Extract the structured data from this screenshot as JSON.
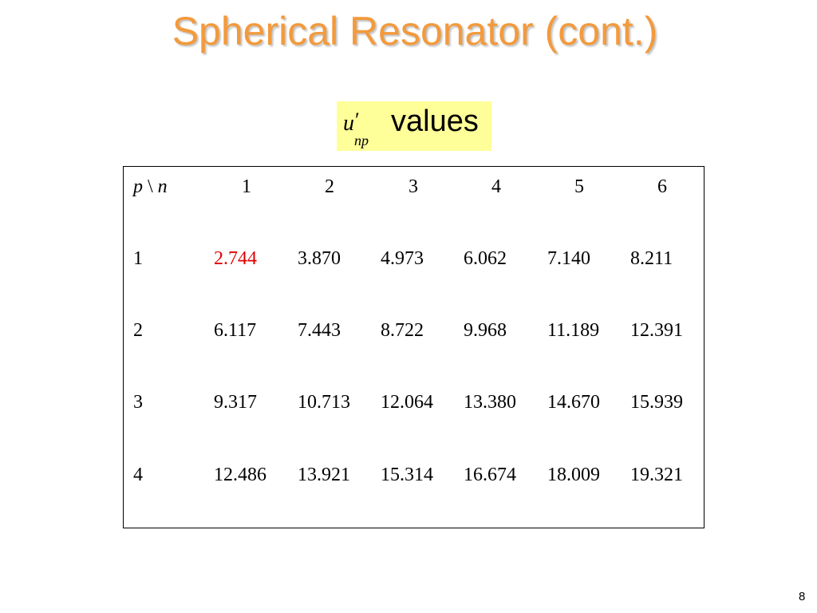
{
  "slide": {
    "title": "Spherical Resonator (cont.)",
    "page_number": "8"
  },
  "label": {
    "symbol_main": "u",
    "symbol_prime": "′",
    "symbol_sub": "np",
    "text": "values"
  },
  "table": {
    "corner_p": "p",
    "corner_sep": " \\ ",
    "corner_n": "n",
    "columns": [
      "1",
      "2",
      "3",
      "4",
      "5",
      "6"
    ],
    "rows": [
      {
        "p": "1",
        "values": [
          "2.744",
          "3.870",
          "4.973",
          "6.062",
          "7.140",
          "8.211"
        ]
      },
      {
        "p": "2",
        "values": [
          "6.117",
          "7.443",
          "8.722",
          "9.968",
          "11.189",
          "12.391"
        ]
      },
      {
        "p": "3",
        "values": [
          "9.317",
          "10.713",
          "12.064",
          "13.380",
          "14.670",
          "15.939"
        ]
      },
      {
        "p": "4",
        "values": [
          "12.486",
          "13.921",
          "15.314",
          "16.674",
          "18.009",
          "19.321"
        ]
      }
    ],
    "highlight_color": "#e00000"
  },
  "colors": {
    "title": "#f39a3c",
    "label_background": "#ffff99"
  }
}
